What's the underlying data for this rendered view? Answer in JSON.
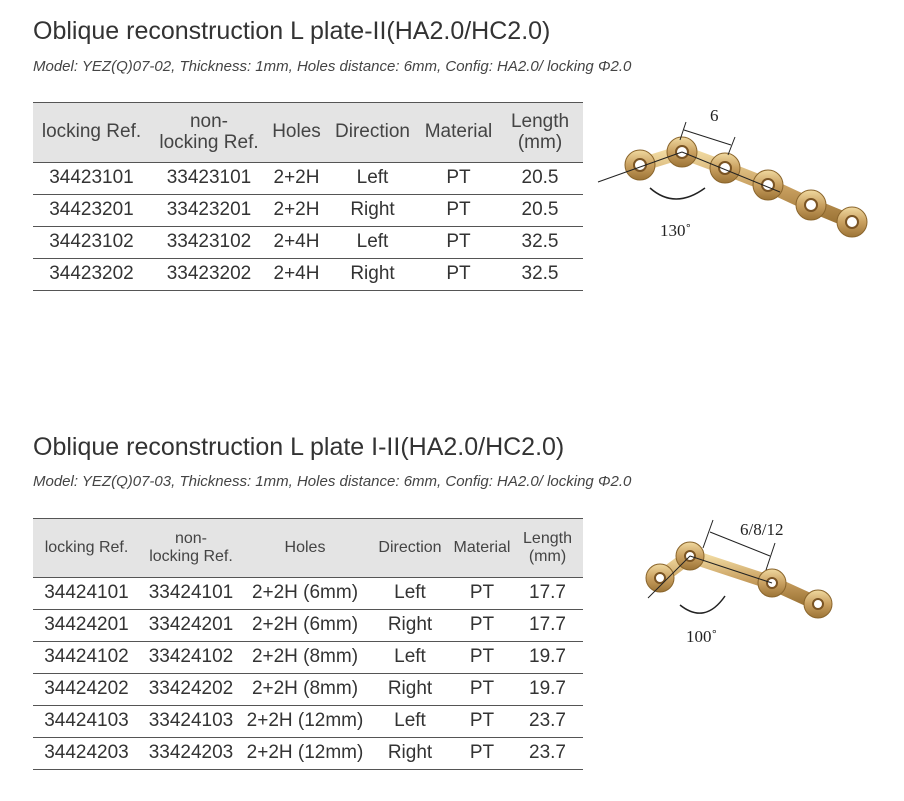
{
  "sections": [
    {
      "title": "Oblique reconstruction L plate-II(HA2.0/HC2.0)",
      "subtitle": "Model: YEZ(Q)07-02, Thickness: 1mm, Holes distance: 6mm, Config: HA2.0/ locking Φ2.0",
      "table": {
        "header": [
          [
            "locking Ref."
          ],
          [
            "non-",
            "locking Ref."
          ],
          [
            "Holes"
          ],
          [
            "Direction"
          ],
          [
            "Material"
          ],
          [
            "Length",
            "(mm)"
          ]
        ],
        "rows": [
          [
            "34423101",
            "33423101",
            "2+2H",
            "Left",
            "PT",
            "20.5"
          ],
          [
            "34423201",
            "33423201",
            "2+2H",
            "Right",
            "PT",
            "20.5"
          ],
          [
            "34423102",
            "33423102",
            "2+4H",
            "Left",
            "PT",
            "32.5"
          ],
          [
            "34423202",
            "33423202",
            "2+4H",
            "Right",
            "PT",
            "32.5"
          ]
        ]
      },
      "figure": {
        "spacing_label": "6",
        "angle_label": "130˚"
      }
    },
    {
      "title": "Oblique reconstruction L plate I-II(HA2.0/HC2.0)",
      "subtitle": "Model: YEZ(Q)07-03, Thickness: 1mm, Holes distance: 6mm, Config: HA2.0/ locking Φ2.0",
      "table": {
        "header": [
          [
            "locking Ref."
          ],
          [
            "non-",
            "locking Ref."
          ],
          [
            "Holes"
          ],
          [
            "Direction"
          ],
          [
            "Material"
          ],
          [
            "Length",
            "(mm)"
          ]
        ],
        "rows": [
          [
            "34424101",
            "33424101",
            "2+2H (6mm)",
            "Left",
            "PT",
            "17.7"
          ],
          [
            "34424201",
            "33424201",
            "2+2H (6mm)",
            "Right",
            "PT",
            "17.7"
          ],
          [
            "34424102",
            "33424102",
            "2+2H (8mm)",
            "Left",
            "PT",
            "19.7"
          ],
          [
            "34424202",
            "33424202",
            "2+2H (8mm)",
            "Right",
            "PT",
            "19.7"
          ],
          [
            "34424103",
            "33424103",
            "2+2H (12mm)",
            "Left",
            "PT",
            "23.7"
          ],
          [
            "34424203",
            "33424203",
            "2+2H (12mm)",
            "Right",
            "PT",
            "23.7"
          ]
        ]
      },
      "figure": {
        "spacing_label": "6/8/12",
        "angle_label": "100˚"
      }
    }
  ]
}
